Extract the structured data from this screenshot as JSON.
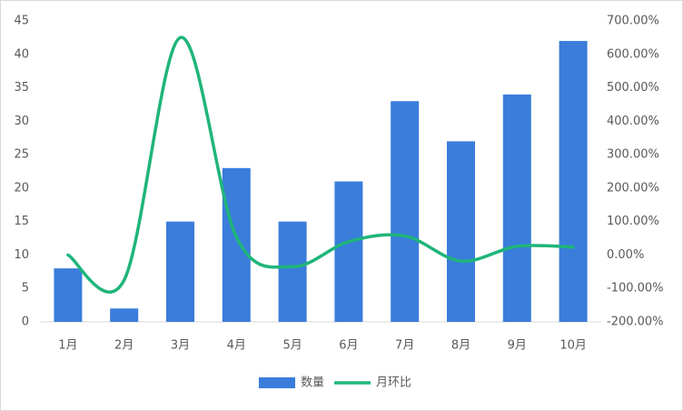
{
  "chart_data": {
    "type": "bar-line",
    "categories": [
      "1月",
      "2月",
      "3月",
      "4月",
      "5月",
      "6月",
      "7月",
      "8月",
      "9月",
      "10月"
    ],
    "series": [
      {
        "name": "数量",
        "color": "#3a7ddb",
        "values": [
          8,
          2,
          15,
          23,
          15,
          21,
          33,
          27,
          34,
          42
        ]
      },
      {
        "name": "月环比",
        "color": "#1fb57a",
        "axis": "y2",
        "values": [
          0,
          -75,
          650,
          53.33,
          -34.78,
          40,
          57.14,
          -18.18,
          25.93,
          23.53
        ]
      }
    ],
    "ylim": [
      0,
      45
    ],
    "yticks": [
      0,
      5,
      10,
      15,
      20,
      25,
      30,
      35,
      40,
      45
    ],
    "y2lim": [
      -200,
      700
    ],
    "y2ticks": [
      {
        "value": -200,
        "label": "-200.00%"
      },
      {
        "value": -100,
        "label": "-100.00%"
      },
      {
        "value": 0,
        "label": "0.00%"
      },
      {
        "value": 100,
        "label": "100.00%"
      },
      {
        "value": 200,
        "label": "200.00%"
      },
      {
        "value": 300,
        "label": "300.00%"
      },
      {
        "value": 400,
        "label": "400.00%"
      },
      {
        "value": 500,
        "label": "500.00%"
      },
      {
        "value": 600,
        "label": "600.00%"
      },
      {
        "value": 700,
        "label": "700.00%"
      }
    ],
    "legend": "bottom"
  }
}
